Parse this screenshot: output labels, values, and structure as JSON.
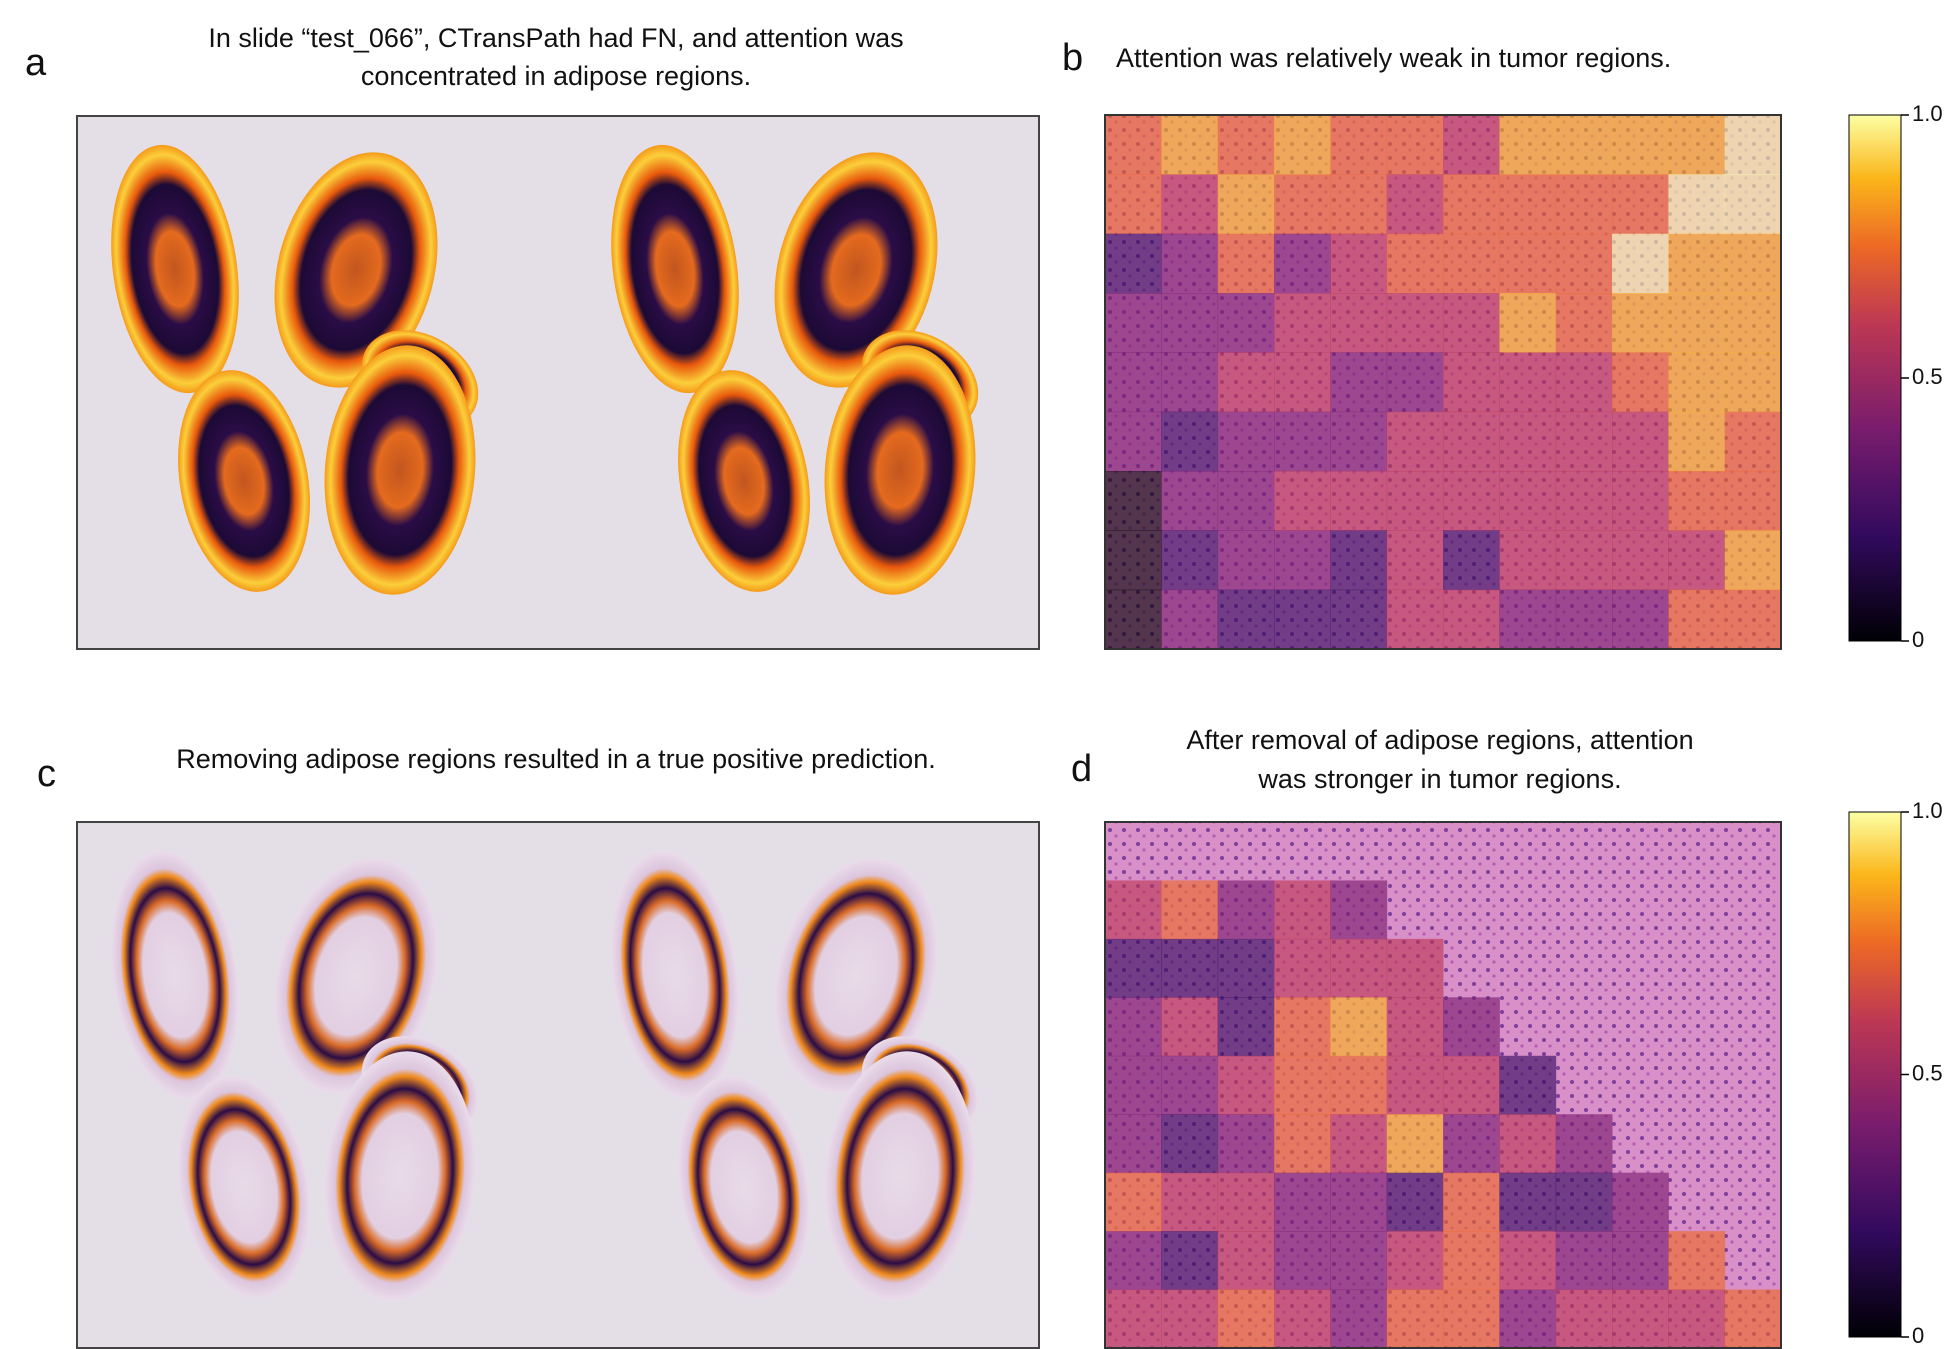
{
  "panels": [
    {
      "label": "a",
      "title": [
        "In slide “test_066”, CTransPath had FN, and attention was",
        "concentrated in adipose regions."
      ]
    },
    {
      "label": "b",
      "title": [
        "Attention was relatively weak in tumor regions."
      ]
    },
    {
      "label": "c",
      "title": [
        "Removing adipose regions resulted in a true positive prediction."
      ]
    },
    {
      "label": "d",
      "title": [
        "After removal of adipose regions, attention",
        "was stronger in tumor regions."
      ]
    }
  ],
  "colorbars": [
    {
      "ticks": [
        {
          "value": 1,
          "label": "1.0"
        },
        {
          "value": 0.5,
          "label": "0.5"
        },
        0
      ]
    },
    {
      "ticks": [
        {
          "value": 1,
          "label": "1.0"
        },
        {
          "value": 0.5,
          "label": "0.5"
        },
        0
      ]
    }
  ]
}
